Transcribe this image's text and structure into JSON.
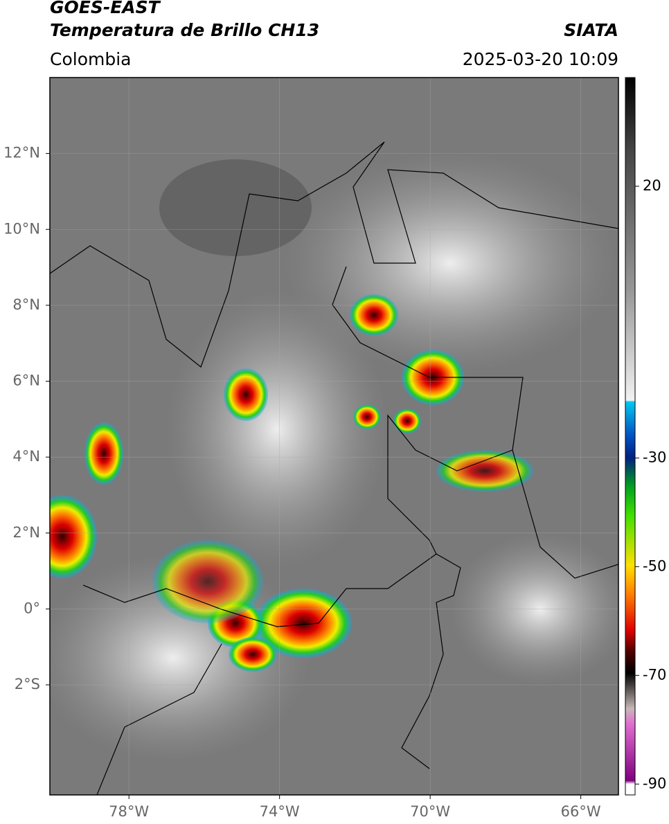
{
  "header": {
    "title": "GOES-EAST",
    "subtitle": "Temperatura de Brillo CH13",
    "source": "SIATA",
    "region": "Colombia",
    "datetime": "2025-03-20 10:09"
  },
  "map": {
    "xlim": [
      -80.1,
      -65
    ],
    "ylim": [
      -4.9,
      14
    ],
    "grid": true,
    "xticks": [
      {
        "value": -78,
        "label": "78°W"
      },
      {
        "value": -74,
        "label": "74°W"
      },
      {
        "value": -70,
        "label": "70°W"
      },
      {
        "value": -66,
        "label": "66°W"
      }
    ],
    "yticks": [
      {
        "value": 12,
        "label": "12°N"
      },
      {
        "value": 10,
        "label": "10°N"
      },
      {
        "value": 8,
        "label": "8°N"
      },
      {
        "value": 6,
        "label": "6°N"
      },
      {
        "value": 4,
        "label": "4°N"
      },
      {
        "value": 2,
        "label": "2°N"
      },
      {
        "value": 0,
        "label": "0°"
      },
      {
        "value": -2,
        "label": "2°S"
      }
    ]
  },
  "colorbar": {
    "lim": [
      -92,
      40
    ],
    "ticks": [
      20,
      -30,
      -50,
      -70,
      -90
    ]
  }
}
